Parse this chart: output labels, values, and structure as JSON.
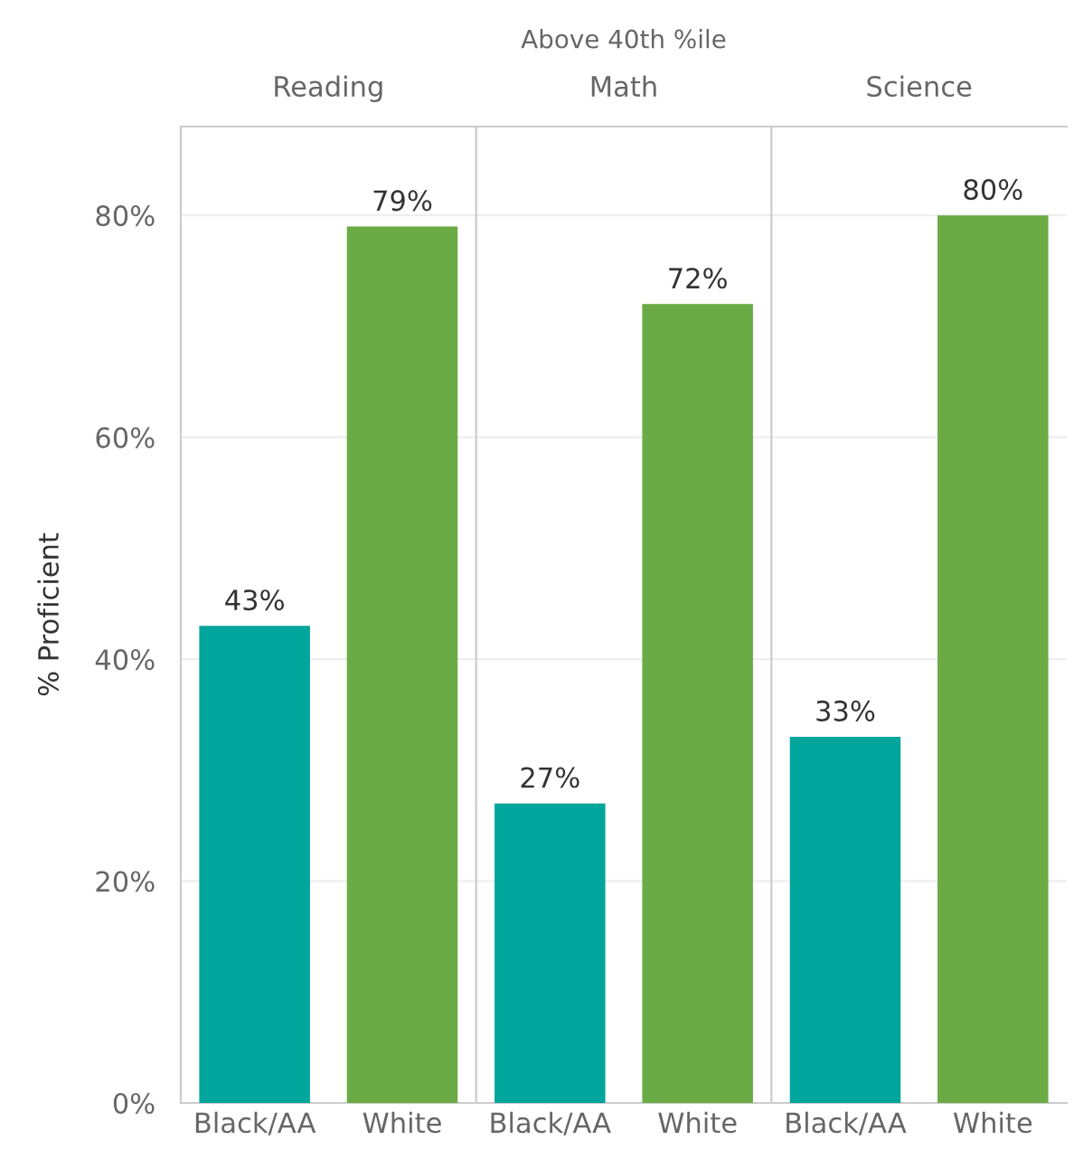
{
  "chart_data": [
    {
      "type": "bar",
      "subtitle": "Reading",
      "ylabel": "% Proficient",
      "categories": [
        "Black/AA",
        "White"
      ],
      "values": [
        43,
        79
      ],
      "colors": [
        "#00a59b",
        "#6aab45"
      ],
      "value_labels": [
        "43%",
        "79%"
      ],
      "ylim": [
        0,
        88
      ],
      "yticks": [
        {
          "value": 0,
          "label": "0%"
        },
        {
          "value": 20,
          "label": "20%"
        },
        {
          "value": 40,
          "label": "40%"
        },
        {
          "value": 60,
          "label": "60%"
        },
        {
          "value": 80,
          "label": "80%"
        }
      ],
      "grid": "y"
    },
    {
      "type": "bar",
      "title": "Above 40th %ile",
      "subtitle": "Math",
      "categories": [
        "Black/AA",
        "White"
      ],
      "values": [
        27,
        72
      ],
      "colors": [
        "#00a59b",
        "#6aab45"
      ],
      "value_labels": [
        "27%",
        "72%"
      ],
      "ylim": [
        0,
        88
      ],
      "yticks": [
        {
          "value": 0,
          "label": null
        },
        {
          "value": 20,
          "label": null
        },
        {
          "value": 40,
          "label": null
        },
        {
          "value": 60,
          "label": null
        },
        {
          "value": 80,
          "label": null
        }
      ],
      "grid": "y",
      "tick_labels": "x"
    },
    {
      "type": "bar",
      "subtitle": "Science",
      "categories": [
        "Black/AA",
        "White"
      ],
      "values": [
        33,
        80
      ],
      "colors": [
        "#00a59b",
        "#6aab45"
      ],
      "value_labels": [
        "33%",
        "80%"
      ],
      "ylim": [
        0,
        88
      ],
      "yticks": [
        {
          "value": 0,
          "label": null
        },
        {
          "value": 20,
          "label": null
        },
        {
          "value": 40,
          "label": null
        },
        {
          "value": 60,
          "label": null
        },
        {
          "value": 80,
          "label": null
        }
      ],
      "grid": "y",
      "tick_labels": "x"
    }
  ]
}
